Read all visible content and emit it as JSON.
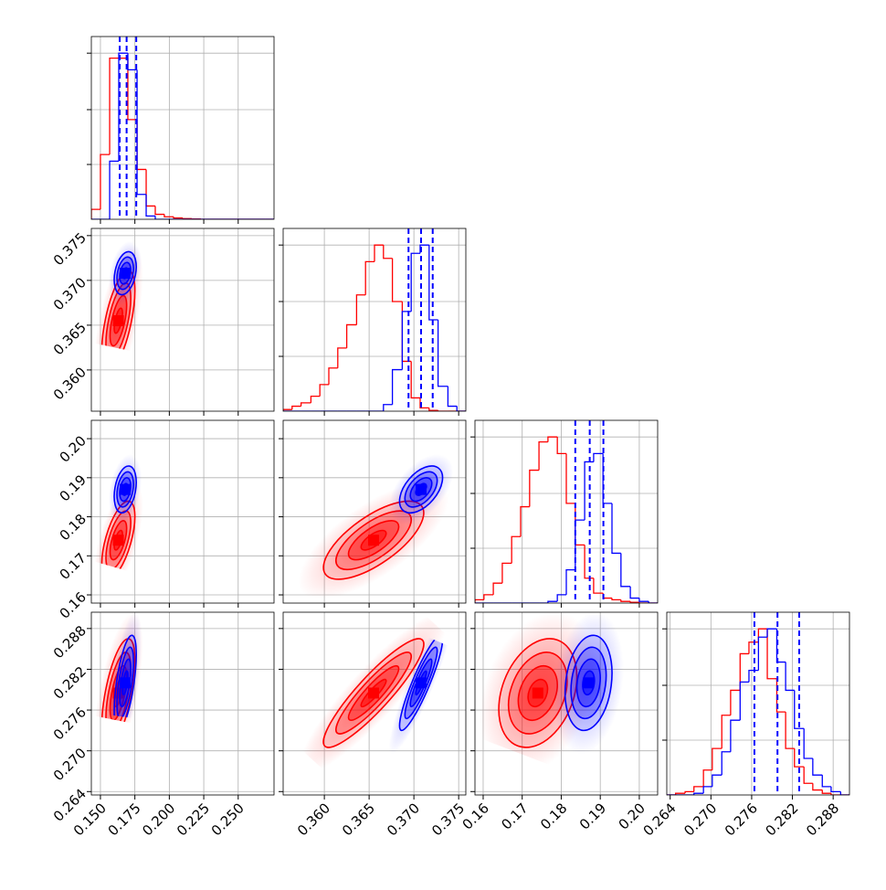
{
  "chart_data": {
    "type": "corner",
    "grid": true,
    "series": [
      {
        "color": "#ff0000"
      },
      {
        "color": "#0000ff"
      }
    ],
    "quantile_color": "#0000ff",
    "parameters": [
      {
        "lim": [
          0.1434,
          0.276
        ],
        "ticks": [
          {
            "value": 0.15,
            "label": "0.150"
          },
          0.175,
          {
            "value": 0.2,
            "label": "0.200"
          },
          0.225,
          {
            "value": 0.25,
            "label": "0.250"
          }
        ]
      },
      {
        "lim": [
          0.3554,
          0.3758
        ],
        "ticks": [
          {
            "value": 0.36,
            "label": "0.360"
          },
          0.365,
          {
            "value": 0.37,
            "label": "0.370"
          },
          0.375
        ]
      },
      {
        "lim": [
          0.1579,
          0.2047
        ],
        "ticks": [
          0.16,
          0.17,
          0.18,
          0.19,
          {
            "value": 0.2,
            "label": "0.20"
          }
        ]
      },
      {
        "lim": [
          0.2635,
          0.2904
        ],
        "ticks": [
          0.264,
          {
            "value": 0.27,
            "label": "0.270"
          },
          0.276,
          0.282,
          0.288
        ]
      }
    ],
    "histograms": [
      {
        "ylim": [
          0,
          1.1
        ],
        "yticks": [
          0.33,
          0.66,
          1.0
        ],
        "bins": [
          0.1434,
          0.15,
          0.1567,
          0.1633,
          0.1699,
          0.1766,
          0.1832,
          0.1898,
          0.1964,
          0.2031,
          0.2097,
          0.2163,
          0.223,
          0.2296,
          0.2362,
          0.2429,
          0.2495,
          0.2561,
          0.2627,
          0.2694,
          0.276
        ],
        "counts": [
          [
            0.06,
            0.39,
            0.97,
            0.97,
            0.6,
            0.3,
            0.08,
            0.03,
            0.015,
            0.008,
            0.004,
            0.002,
            0,
            0,
            0,
            0,
            0,
            0,
            0,
            0
          ],
          [
            0,
            0,
            0.35,
            1.0,
            0.9,
            0.15,
            0.02,
            0,
            0,
            0,
            0,
            0,
            0,
            0,
            0,
            0,
            0,
            0,
            0,
            0
          ]
        ],
        "quantiles": [
          0.164,
          0.169,
          0.176
        ]
      },
      {
        "ylim": [
          0,
          1.1
        ],
        "yticks": [
          0.33,
          0.66,
          1.0
        ],
        "bins": [
          0.3554,
          0.3564,
          0.3574,
          0.3585,
          0.3595,
          0.3605,
          0.3615,
          0.3625,
          0.3636,
          0.3646,
          0.3656,
          0.3666,
          0.3676,
          0.3687,
          0.3697,
          0.3707,
          0.3717,
          0.3727,
          0.3738,
          0.3748,
          0.3758
        ],
        "counts": [
          [
            0.01,
            0.03,
            0.05,
            0.09,
            0.16,
            0.26,
            0.38,
            0.52,
            0.7,
            0.9,
            1.0,
            0.92,
            0.66,
            0.3,
            0.08,
            0.02,
            0.005,
            0,
            0,
            0
          ],
          [
            0,
            0,
            0,
            0,
            0,
            0,
            0,
            0,
            0,
            0,
            0,
            0.04,
            0.25,
            0.6,
            0.95,
            1.0,
            0.55,
            0.15,
            0.03,
            0
          ]
        ],
        "quantiles": [
          0.3694,
          0.3708,
          0.3721
        ]
      },
      {
        "ylim": [
          0,
          1.1
        ],
        "yticks": [
          0.33,
          0.66,
          1.0
        ],
        "bins": [
          0.1579,
          0.1602,
          0.1626,
          0.1649,
          0.1673,
          0.1696,
          0.1719,
          0.1743,
          0.1766,
          0.179,
          0.1813,
          0.1836,
          0.186,
          0.1883,
          0.1907,
          0.193,
          0.1953,
          0.1977,
          0.2,
          0.2024,
          0.2047
        ],
        "counts": [
          [
            0.02,
            0.05,
            0.12,
            0.24,
            0.4,
            0.58,
            0.8,
            0.97,
            1.0,
            0.9,
            0.6,
            0.35,
            0.15,
            0.06,
            0.03,
            0.02,
            0.01,
            0.005,
            0,
            0
          ],
          [
            0,
            0,
            0,
            0,
            0,
            0,
            0,
            0,
            0.01,
            0.05,
            0.2,
            0.5,
            0.85,
            0.9,
            0.6,
            0.3,
            0.1,
            0.03,
            0.01,
            0
          ]
        ],
        "quantiles": [
          0.1836,
          0.1873,
          0.1908
        ]
      },
      {
        "ylim": [
          0,
          1.1
        ],
        "yticks": [
          0.33,
          0.66,
          1.0
        ],
        "bins": [
          0.2635,
          0.2648,
          0.2662,
          0.2675,
          0.2689,
          0.2702,
          0.2716,
          0.2729,
          0.2743,
          0.2756,
          0.277,
          0.2783,
          0.2797,
          0.281,
          0.2823,
          0.2837,
          0.285,
          0.2864,
          0.2877,
          0.2891,
          0.2904
        ],
        "counts": [
          [
            0,
            0.01,
            0.02,
            0.05,
            0.15,
            0.28,
            0.48,
            0.63,
            0.85,
            0.92,
            1.0,
            0.7,
            0.5,
            0.28,
            0.17,
            0.07,
            0.03,
            0.01,
            0,
            0
          ],
          [
            0,
            0,
            0,
            0.01,
            0.05,
            0.12,
            0.26,
            0.45,
            0.68,
            0.75,
            0.95,
            1.0,
            0.8,
            0.63,
            0.4,
            0.22,
            0.12,
            0.05,
            0.02,
            0
          ]
        ],
        "quantiles": [
          0.2764,
          0.2798,
          0.283
        ]
      }
    ],
    "pairs": [
      {
        "series": [
          {
            "mean": [
              0.163,
              0.3655
            ],
            "sigma": [
              0.006,
              0.0028
            ],
            "corr": 0.6
          },
          {
            "mean": [
              0.168,
              0.3708
            ],
            "sigma": [
              0.004,
              0.0012
            ],
            "corr": 0.3
          }
        ]
      },
      {
        "series": [
          {
            "mean": [
              0.163,
              0.174
            ],
            "sigma": [
              0.006,
              0.005
            ],
            "corr": 0.6
          },
          {
            "mean": [
              0.168,
              0.187
            ],
            "sigma": [
              0.004,
              0.003
            ],
            "corr": 0.3
          }
        ]
      },
      {
        "series": [
          {
            "mean": [
              0.3655,
              0.174
            ],
            "sigma": [
              0.0028,
              0.005
            ],
            "corr": 0.7
          },
          {
            "mean": [
              0.3708,
              0.187
            ],
            "sigma": [
              0.0012,
              0.003
            ],
            "corr": 0.5
          }
        ]
      },
      {
        "series": [
          {
            "mean": [
              0.163,
              0.2785
            ],
            "sigma": [
              0.006,
              0.004
            ],
            "corr": 0.6
          },
          {
            "mean": [
              0.168,
              0.28
            ],
            "sigma": [
              0.004,
              0.0035
            ],
            "corr": 0.6
          }
        ]
      },
      {
        "series": [
          {
            "mean": [
              0.3655,
              0.2785
            ],
            "sigma": [
              0.0028,
              0.004
            ],
            "corr": 0.9
          },
          {
            "mean": [
              0.3708,
              0.28
            ],
            "sigma": [
              0.0012,
              0.0035
            ],
            "corr": 0.9
          }
        ]
      },
      {
        "series": [
          {
            "mean": [
              0.174,
              0.2785
            ],
            "sigma": [
              0.005,
              0.004
            ],
            "corr": 0.3
          },
          {
            "mean": [
              0.187,
              0.28
            ],
            "sigma": [
              0.003,
              0.0035
            ],
            "corr": 0.2
          }
        ]
      }
    ]
  }
}
